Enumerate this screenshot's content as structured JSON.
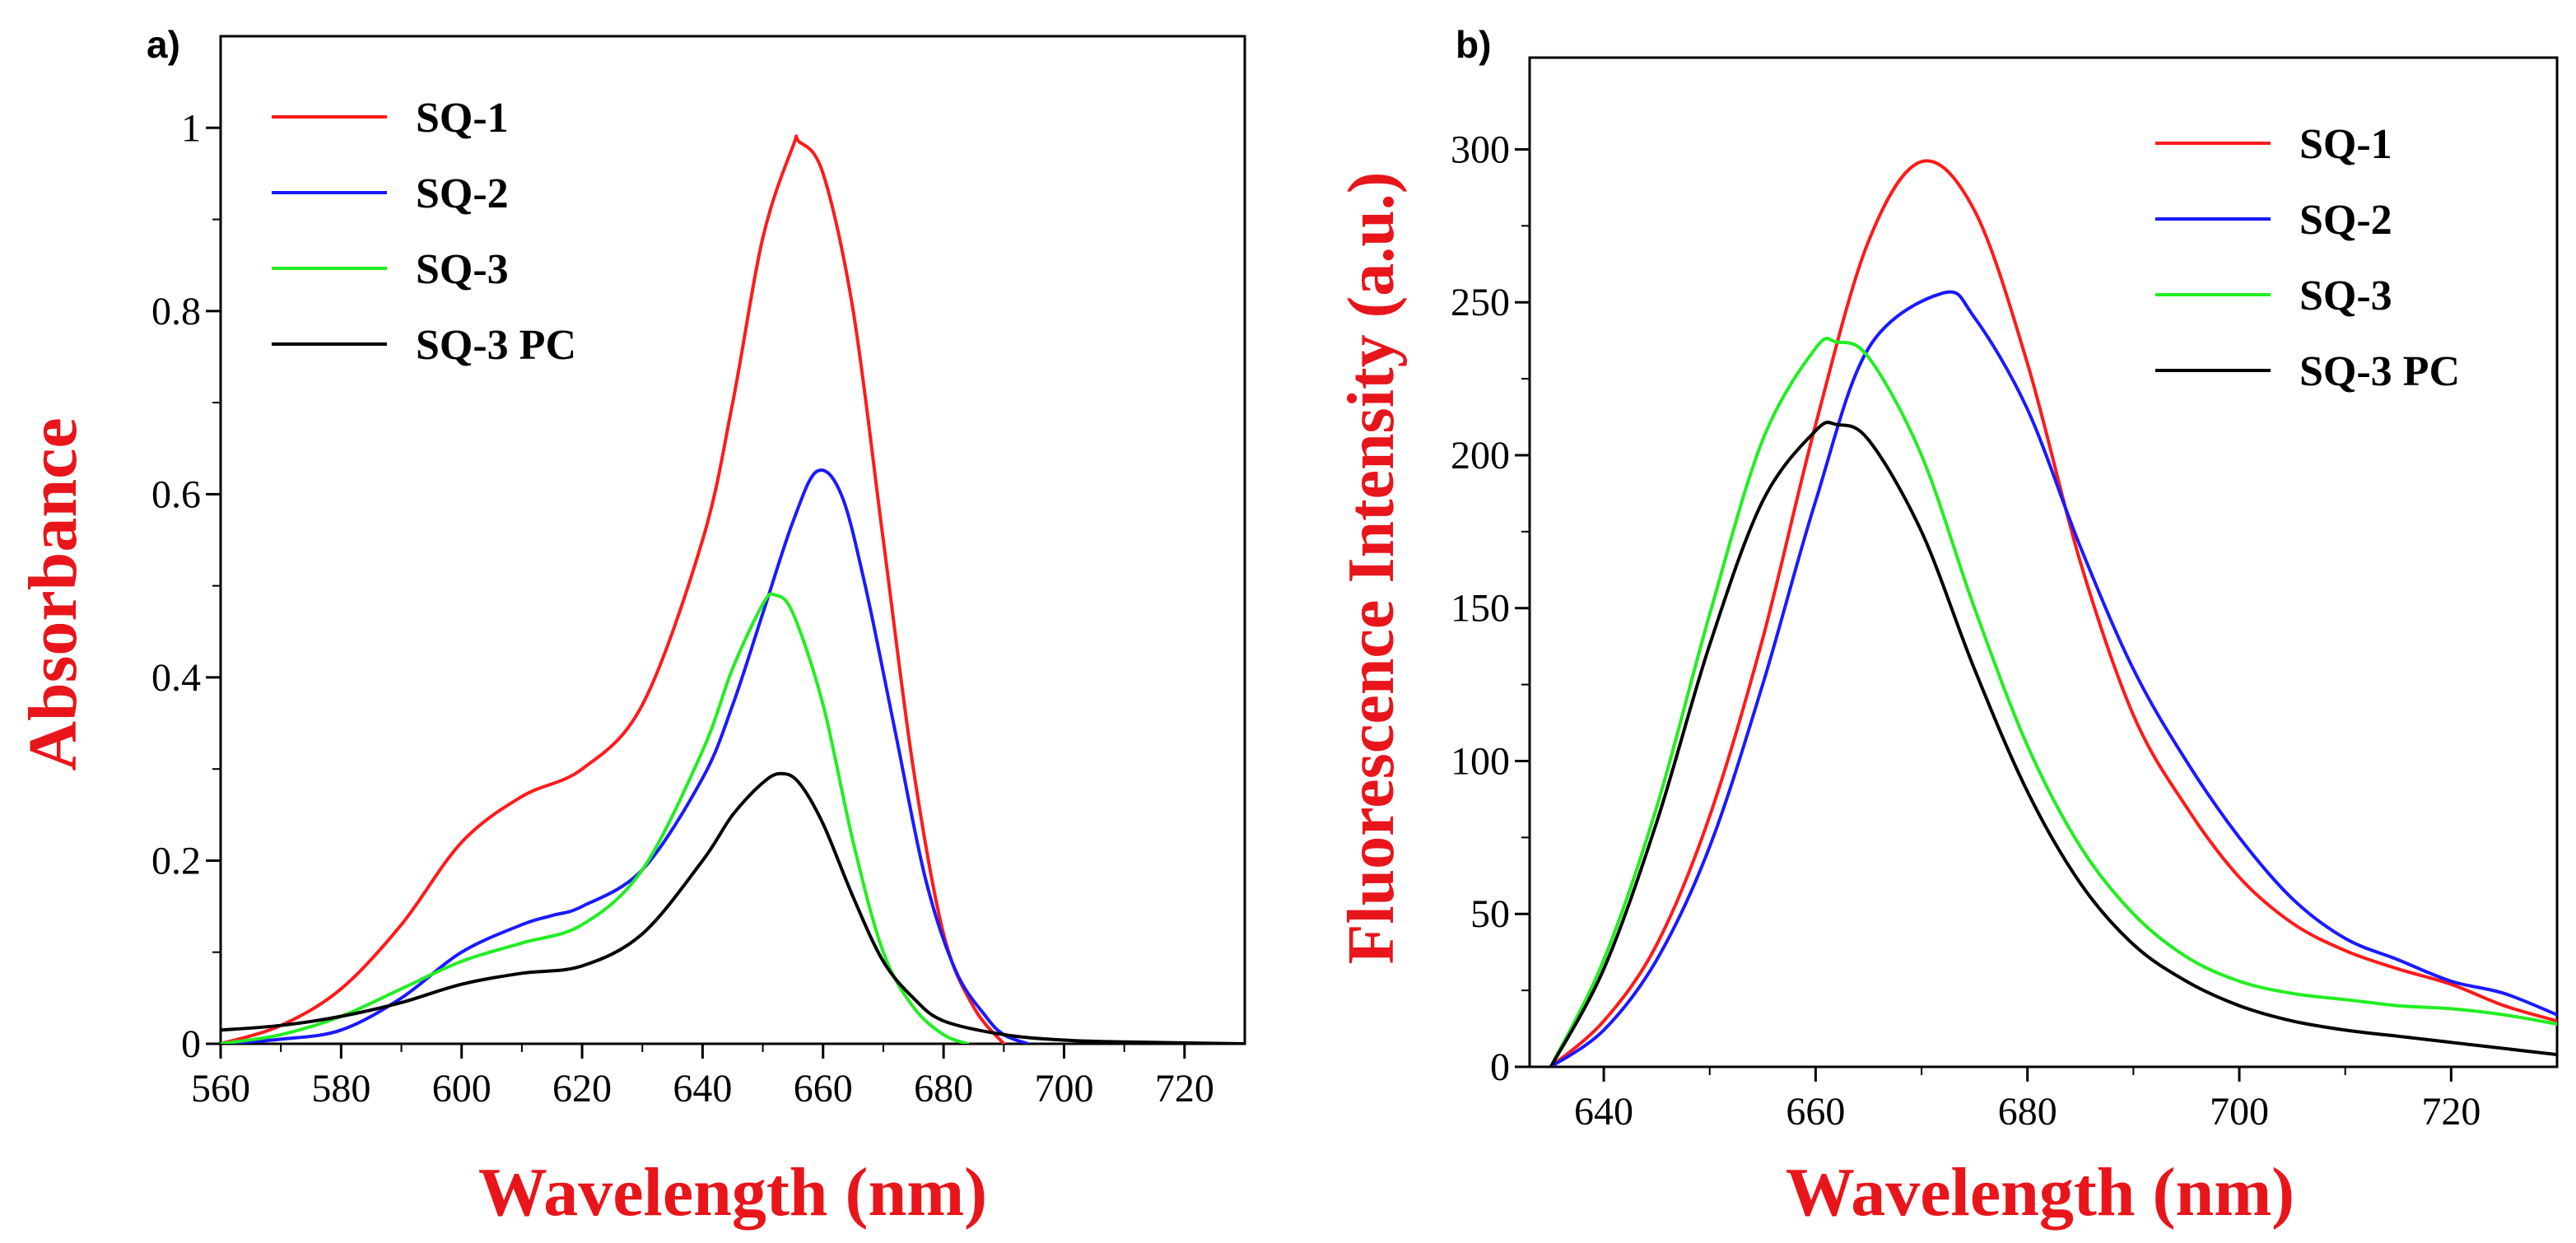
{
  "chart_data": [
    {
      "panel_label": "a)",
      "type": "line",
      "title": "",
      "xlabel": "Wavelength (nm)",
      "ylabel": "Absorbance",
      "xlim": [
        560,
        730
      ],
      "ylim": [
        0,
        1.1
      ],
      "xticks": [
        560,
        580,
        600,
        620,
        640,
        660,
        680,
        700,
        720
      ],
      "yticks": [
        0,
        0.2,
        0.4,
        0.6,
        0.8,
        1
      ],
      "xtick_labels": [
        "560",
        "580",
        "600",
        "620",
        "640",
        "660",
        "680",
        "700",
        "720"
      ],
      "ytick_labels": [
        "0",
        "0.2",
        "0.4",
        "0.6",
        "0.8",
        "1"
      ],
      "legend_position": "top-left",
      "grid": false,
      "series": [
        {
          "name": "SQ-1",
          "color": "#ff1a1a",
          "x": [
            560,
            570,
            580,
            590,
            600,
            610,
            620,
            630,
            640,
            645,
            650,
            655,
            656,
            660,
            665,
            670,
            675,
            680,
            685,
            690
          ],
          "y": [
            0.0,
            0.02,
            0.06,
            0.13,
            0.22,
            0.27,
            0.3,
            0.37,
            0.55,
            0.7,
            0.88,
            0.98,
            0.985,
            0.95,
            0.8,
            0.55,
            0.3,
            0.12,
            0.04,
            0.0
          ]
        },
        {
          "name": "SQ-2",
          "color": "#1a1aff",
          "x": [
            560,
            570,
            580,
            590,
            600,
            610,
            615,
            620,
            630,
            640,
            645,
            650,
            655,
            659,
            663,
            667,
            672,
            677,
            682,
            687,
            690,
            694
          ],
          "y": [
            0.0,
            0.005,
            0.015,
            0.05,
            0.1,
            0.13,
            0.14,
            0.15,
            0.19,
            0.29,
            0.37,
            0.47,
            0.57,
            0.625,
            0.6,
            0.5,
            0.34,
            0.18,
            0.08,
            0.03,
            0.01,
            0.0
          ]
        },
        {
          "name": "SQ-3",
          "color": "#22ee22",
          "x": [
            560,
            570,
            580,
            590,
            600,
            610,
            620,
            630,
            640,
            645,
            650,
            652,
            655,
            660,
            665,
            670,
            675,
            680,
            684
          ],
          "y": [
            0.0,
            0.01,
            0.03,
            0.06,
            0.09,
            0.11,
            0.13,
            0.19,
            0.32,
            0.41,
            0.48,
            0.49,
            0.47,
            0.37,
            0.22,
            0.1,
            0.04,
            0.01,
            0.0
          ]
        },
        {
          "name": "SQ-3 PC",
          "color": "#000000",
          "x": [
            560,
            570,
            580,
            590,
            600,
            610,
            620,
            630,
            640,
            645,
            650,
            653,
            656,
            660,
            665,
            670,
            675,
            680,
            690,
            700,
            710,
            730
          ],
          "y": [
            0.015,
            0.02,
            0.03,
            0.045,
            0.065,
            0.077,
            0.085,
            0.12,
            0.2,
            0.25,
            0.285,
            0.295,
            0.285,
            0.24,
            0.16,
            0.09,
            0.05,
            0.025,
            0.01,
            0.004,
            0.002,
            0.0
          ]
        }
      ]
    },
    {
      "panel_label": "b)",
      "type": "line",
      "title": "",
      "xlabel": "Wavelength (nm)",
      "ylabel": "Fluorescence Intensity (a.u.)",
      "xlim": [
        633,
        730
      ],
      "ylim": [
        0,
        330
      ],
      "xticks": [
        640,
        660,
        680,
        700,
        720
      ],
      "yticks": [
        0,
        50,
        100,
        150,
        200,
        250,
        300
      ],
      "xtick_labels": [
        "640",
        "660",
        "680",
        "700",
        "720"
      ],
      "ytick_labels": [
        "0",
        "50",
        "100",
        "150",
        "200",
        "250",
        "300"
      ],
      "legend_position": "top-right",
      "grid": false,
      "series": [
        {
          "name": "SQ-1",
          "color": "#ff1a1a",
          "x": [
            635,
            640,
            645,
            650,
            655,
            660,
            665,
            670,
            675,
            680,
            685,
            690,
            695,
            700,
            705,
            710,
            715,
            720,
            725,
            730
          ],
          "y": [
            0,
            15,
            40,
            82,
            140,
            210,
            270,
            296,
            280,
            230,
            165,
            115,
            85,
            62,
            47,
            38,
            32,
            27,
            20,
            15
          ]
        },
        {
          "name": "SQ-2",
          "color": "#1a1aff",
          "x": [
            635,
            640,
            645,
            650,
            655,
            660,
            665,
            672,
            675,
            680,
            685,
            690,
            695,
            700,
            705,
            710,
            715,
            720,
            725,
            730
          ],
          "y": [
            0,
            12,
            35,
            72,
            125,
            185,
            235,
            253,
            245,
            215,
            170,
            130,
            100,
            75,
            55,
            42,
            35,
            28,
            24,
            17
          ]
        },
        {
          "name": "SQ-3",
          "color": "#22ee22",
          "x": [
            635,
            640,
            645,
            650,
            655,
            660,
            662,
            665,
            670,
            675,
            680,
            685,
            690,
            695,
            700,
            705,
            710,
            715,
            720,
            725,
            730
          ],
          "y": [
            0,
            35,
            85,
            148,
            205,
            235,
            237,
            232,
            200,
            150,
            105,
            72,
            50,
            36,
            28,
            24,
            22,
            20,
            19,
            17,
            14
          ]
        },
        {
          "name": "SQ-3 PC",
          "color": "#000000",
          "x": [
            635,
            640,
            645,
            650,
            655,
            660,
            662,
            665,
            670,
            675,
            680,
            685,
            690,
            695,
            700,
            705,
            710,
            715,
            720,
            725,
            730
          ],
          "y": [
            0,
            32,
            80,
            138,
            185,
            208,
            210,
            205,
            175,
            130,
            90,
            60,
            40,
            28,
            20,
            15,
            12,
            10,
            8,
            6,
            4
          ]
        }
      ]
    }
  ]
}
